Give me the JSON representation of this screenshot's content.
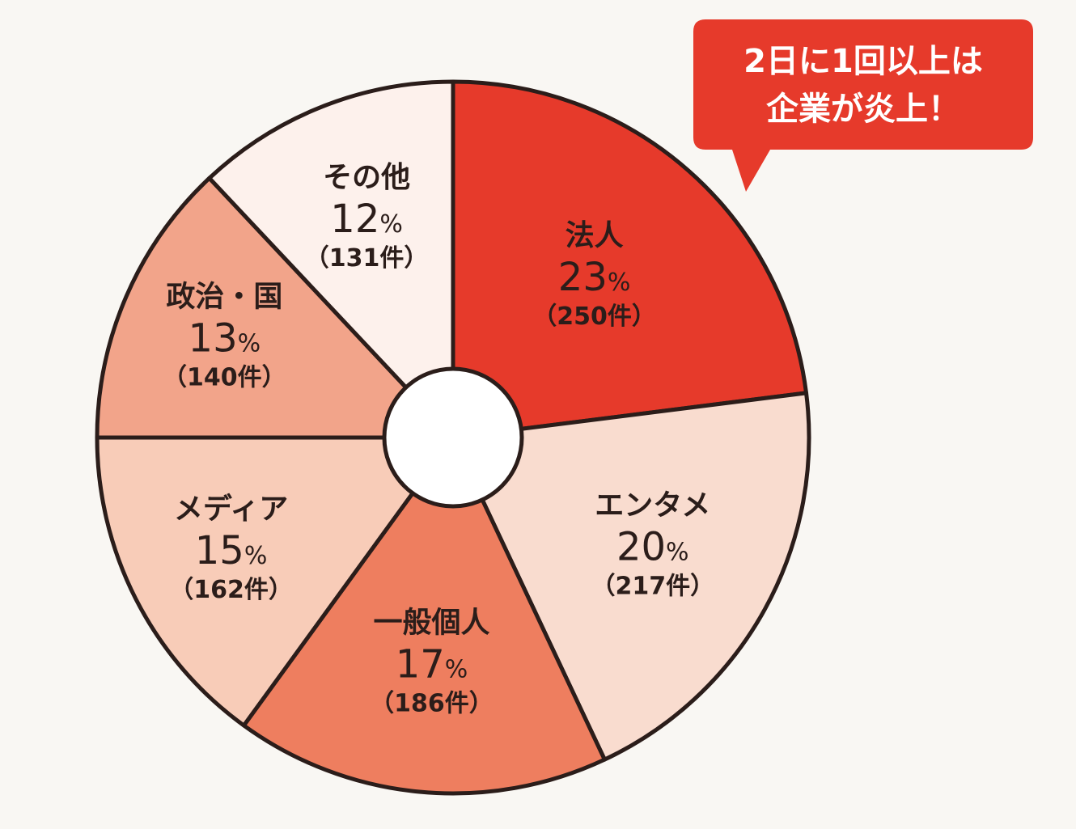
{
  "chart_data": {
    "type": "pie",
    "donut": true,
    "slices": [
      {
        "name": "法人",
        "percent": 23,
        "percent_label": "23",
        "count_label": "（250件）",
        "value": 250,
        "color": "#e63a2b"
      },
      {
        "name": "エンタメ",
        "percent": 20,
        "percent_label": "20",
        "count_label": "（217件）",
        "value": 217,
        "color": "#f9dccf"
      },
      {
        "name": "一般個人",
        "percent": 17,
        "percent_label": "17",
        "count_label": "（186件）",
        "value": 186,
        "color": "#ee7e5f"
      },
      {
        "name": "メディア",
        "percent": 15,
        "percent_label": "15",
        "count_label": "（162件）",
        "value": 162,
        "color": "#f8ccb8"
      },
      {
        "name": "政治・国",
        "percent": 13,
        "percent_label": "13",
        "count_label": "（140件）",
        "value": 140,
        "color": "#f2a48a"
      },
      {
        "name": "その他",
        "percent": 12,
        "percent_label": "12",
        "count_label": "（131件）",
        "value": 131,
        "color": "#fdf1ec"
      }
    ],
    "percent_symbol": "%",
    "start": "12 o'clock",
    "direction": "clockwise"
  },
  "callout": {
    "line1": "2日に1回以上は",
    "line2": "企業が炎上！",
    "color": "#e63a2b"
  },
  "colors": {
    "outline": "#2b1d1a",
    "background": "#f9f7f3"
  }
}
